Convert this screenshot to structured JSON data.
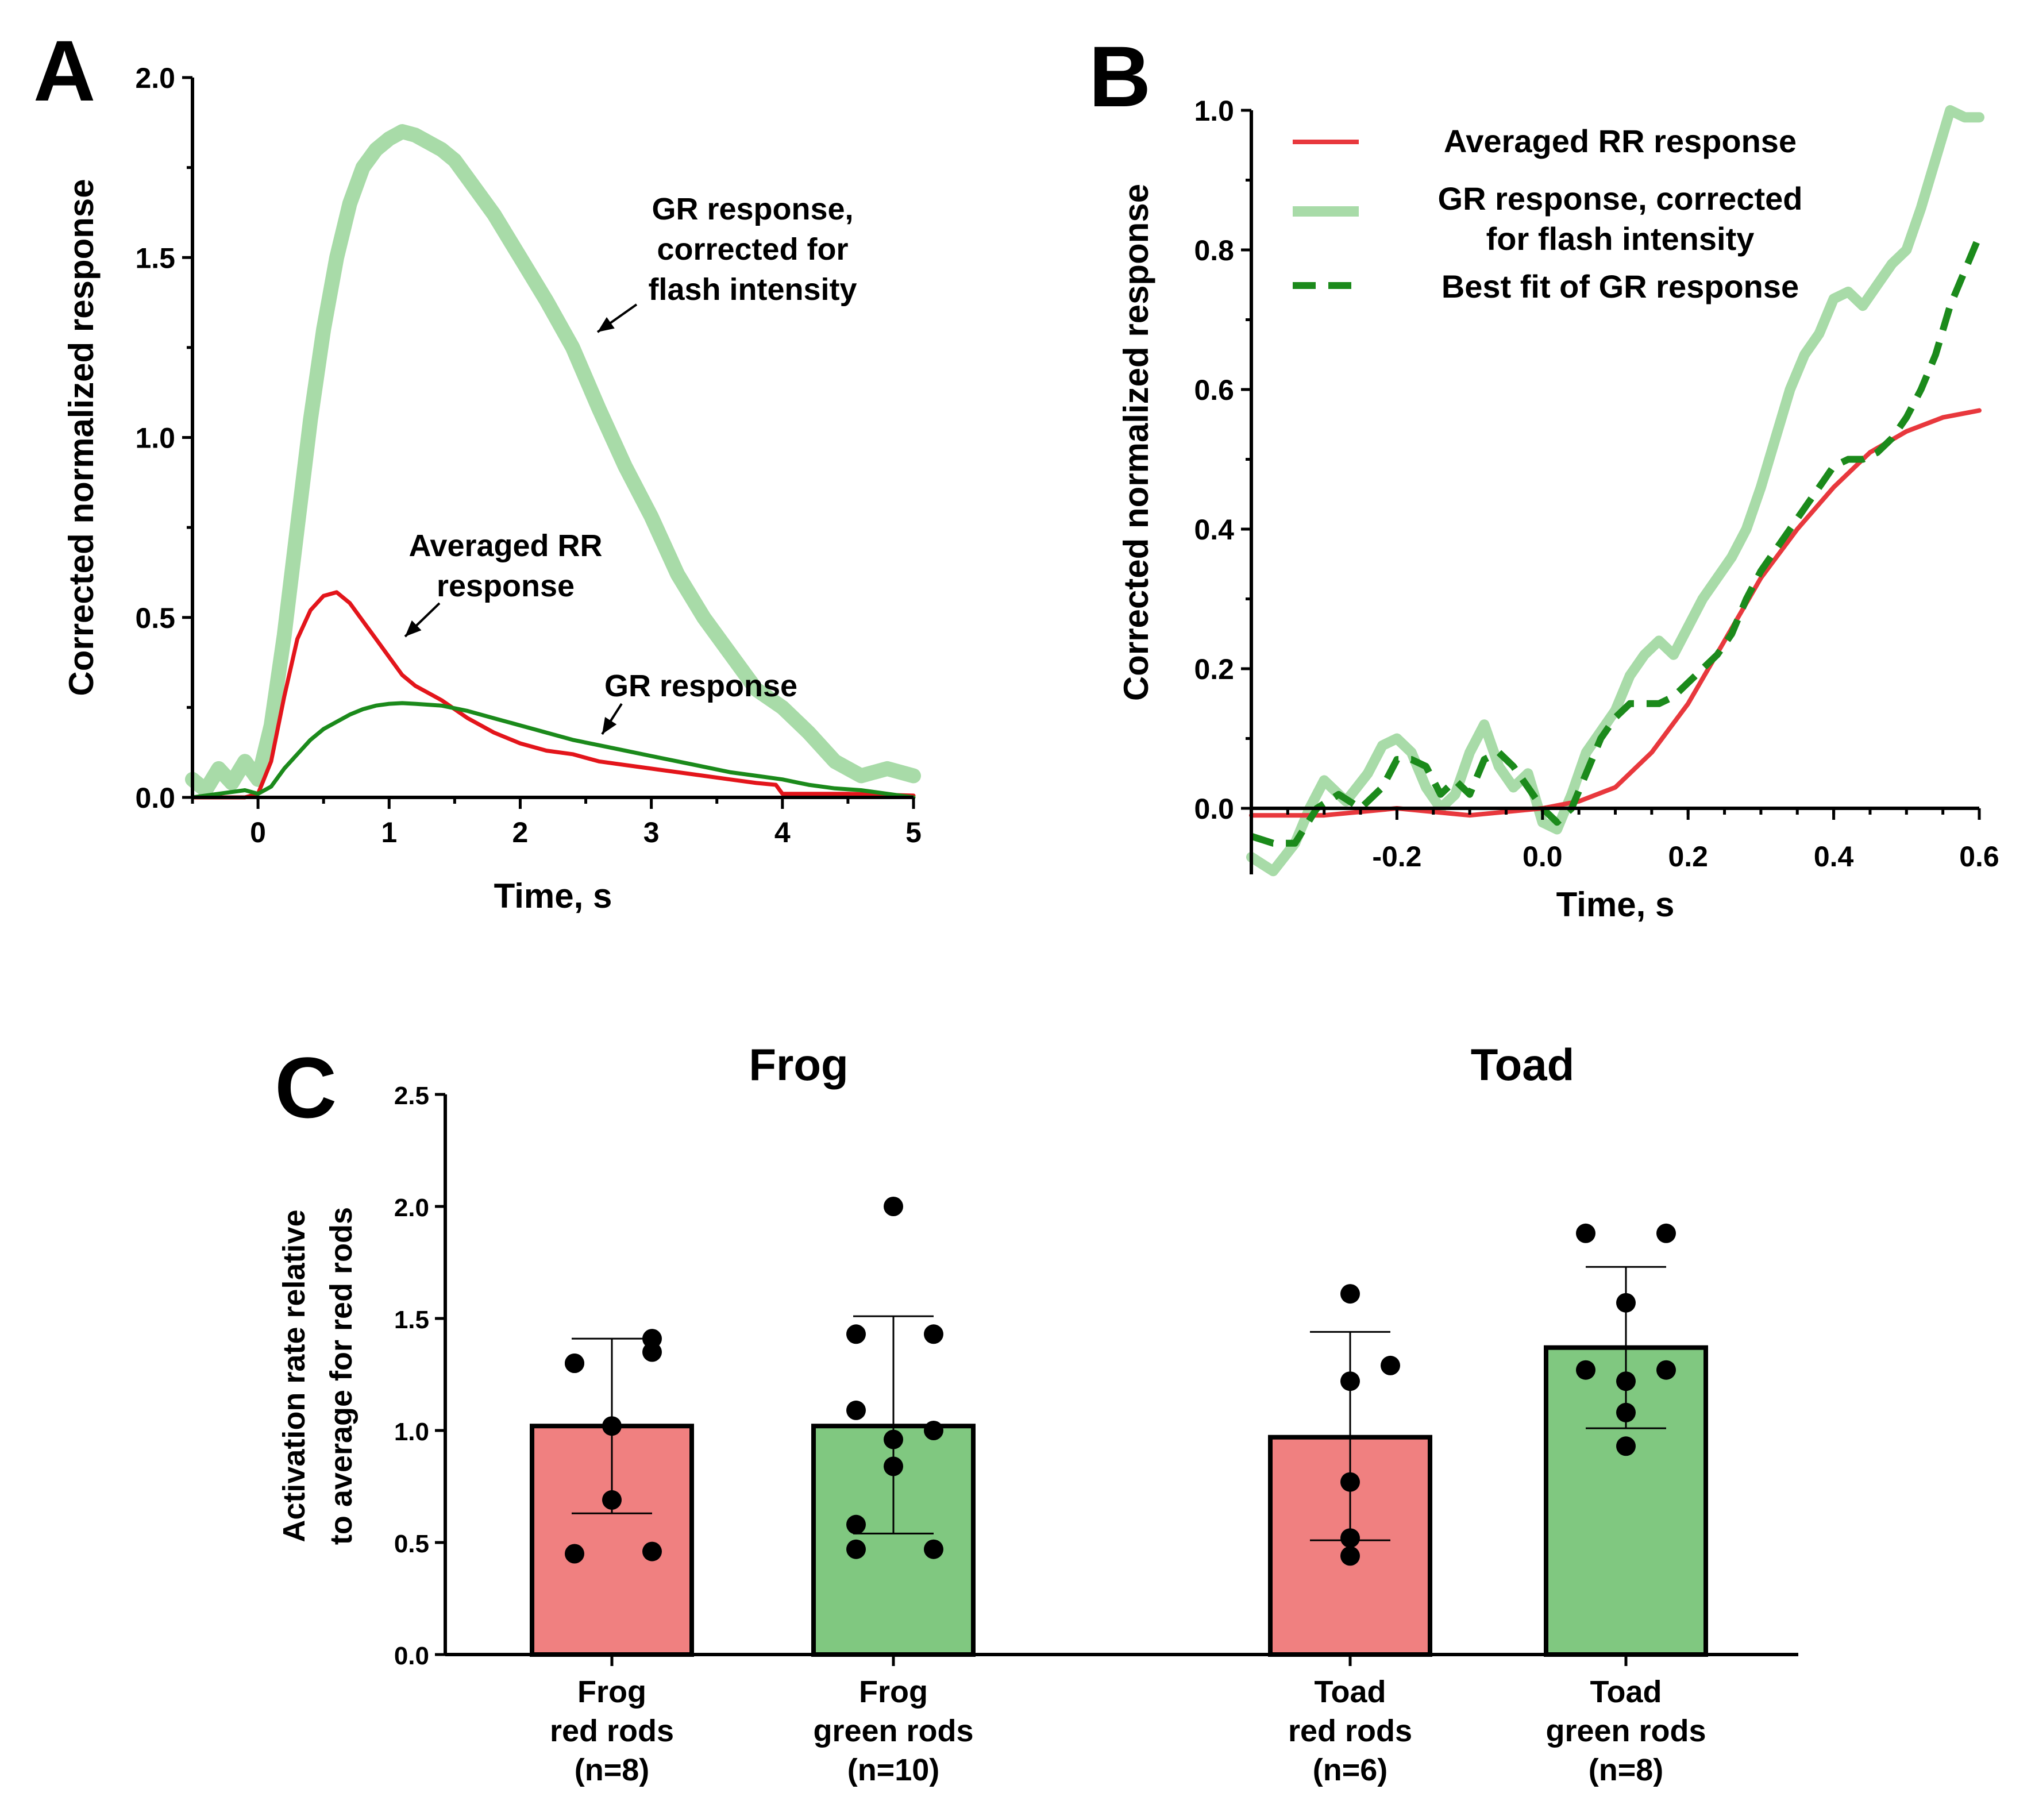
{
  "colors": {
    "rr_red": "#e3151b",
    "rr_red_light": "#e8383d",
    "gr_green_dark": "#1b8a1b",
    "gr_green_light": "#a8dba8",
    "bar_red": "#f08080",
    "bar_green": "#80c880",
    "dot": "#000000"
  },
  "chart_data": [
    {
      "panel": "A",
      "type": "line",
      "xlabel": "Time, s",
      "ylabel": "Corrected normalized response",
      "xlim": [
        -0.5,
        5
      ],
      "ylim": [
        0,
        2.0
      ],
      "xticks": [
        "0",
        "1",
        "2",
        "3",
        "4",
        "5"
      ],
      "yticks": [
        "0.0",
        "0.5",
        "1.0",
        "1.5",
        "2.0"
      ],
      "annotations": [
        {
          "lines": [
            "GR response,",
            "corrected for",
            "flash intensity"
          ]
        },
        {
          "lines": [
            "Averaged RR",
            "response"
          ]
        },
        {
          "lines": [
            "GR response"
          ]
        }
      ],
      "series": [
        {
          "name": "GR response, corrected for flash intensity",
          "color": "#a8dba8",
          "x": [
            -0.5,
            -0.4,
            -0.3,
            -0.2,
            -0.1,
            0,
            0.1,
            0.2,
            0.3,
            0.4,
            0.5,
            0.6,
            0.7,
            0.8,
            0.9,
            1.0,
            1.1,
            1.2,
            1.3,
            1.4,
            1.5,
            1.6,
            1.8,
            2.0,
            2.2,
            2.4,
            2.6,
            2.8,
            3.0,
            3.2,
            3.4,
            3.6,
            3.8,
            4.0,
            4.2,
            4.4,
            4.6,
            4.8,
            5.0
          ],
          "y": [
            0.05,
            0.02,
            0.08,
            0.04,
            0.1,
            0.05,
            0.2,
            0.45,
            0.75,
            1.05,
            1.3,
            1.5,
            1.65,
            1.75,
            1.8,
            1.83,
            1.85,
            1.84,
            1.82,
            1.8,
            1.77,
            1.72,
            1.62,
            1.5,
            1.38,
            1.25,
            1.08,
            0.92,
            0.78,
            0.62,
            0.5,
            0.4,
            0.3,
            0.25,
            0.18,
            0.1,
            0.06,
            0.08,
            0.06
          ]
        },
        {
          "name": "Averaged RR response",
          "color": "#e3151b",
          "x": [
            -0.5,
            -0.3,
            -0.1,
            0,
            0.1,
            0.2,
            0.3,
            0.4,
            0.5,
            0.6,
            0.7,
            0.8,
            0.9,
            1.0,
            1.1,
            1.2,
            1.4,
            1.6,
            1.8,
            2.0,
            2.2,
            2.4,
            2.6,
            2.8,
            3.0,
            3.2,
            3.4,
            3.6,
            3.8,
            3.95,
            4.0,
            4.2,
            4.5,
            5.0
          ],
          "y": [
            0.0,
            0.0,
            0.0,
            0.01,
            0.1,
            0.28,
            0.44,
            0.52,
            0.56,
            0.57,
            0.54,
            0.49,
            0.44,
            0.39,
            0.34,
            0.31,
            0.27,
            0.22,
            0.18,
            0.15,
            0.13,
            0.12,
            0.1,
            0.09,
            0.08,
            0.07,
            0.06,
            0.05,
            0.04,
            0.035,
            0.01,
            0.01,
            0.01,
            0.005
          ]
        },
        {
          "name": "GR response",
          "color": "#1b8a1b",
          "x": [
            -0.5,
            -0.3,
            -0.1,
            0,
            0.1,
            0.2,
            0.3,
            0.4,
            0.5,
            0.6,
            0.7,
            0.8,
            0.9,
            1.0,
            1.1,
            1.2,
            1.4,
            1.6,
            1.8,
            2.0,
            2.2,
            2.4,
            2.6,
            2.8,
            3.0,
            3.2,
            3.4,
            3.6,
            3.8,
            4.0,
            4.2,
            4.4,
            4.6,
            4.8,
            5.0
          ],
          "y": [
            0.0,
            0.01,
            0.02,
            0.01,
            0.03,
            0.08,
            0.12,
            0.16,
            0.19,
            0.21,
            0.23,
            0.245,
            0.255,
            0.26,
            0.262,
            0.26,
            0.255,
            0.24,
            0.22,
            0.2,
            0.18,
            0.16,
            0.145,
            0.13,
            0.115,
            0.1,
            0.085,
            0.07,
            0.06,
            0.05,
            0.035,
            0.025,
            0.02,
            0.01,
            0.0
          ]
        }
      ]
    },
    {
      "panel": "B",
      "type": "line",
      "xlabel": "Time, s",
      "ylabel": "Corrected normalized response",
      "xlim": [
        -0.4,
        0.6
      ],
      "ylim": [
        -0.1,
        1.0
      ],
      "xticks": [
        "-0.2",
        "0.0",
        "0.2",
        "0.4",
        "0.6"
      ],
      "yticks": [
        "0.0",
        "0.2",
        "0.4",
        "0.6",
        "0.8",
        "1.0"
      ],
      "legend": [
        "Averaged RR response",
        "GR response, corrected for flash intensity",
        "Best fit of GR response"
      ],
      "legend_lines": [
        [
          "Averaged RR response"
        ],
        [
          "GR response, corrected",
          "for flash intensity"
        ],
        [
          "Best fit of GR response"
        ]
      ],
      "series": [
        {
          "name": "GR response, corrected for flash intensity",
          "color": "#a8dba8",
          "x": [
            -0.4,
            -0.37,
            -0.34,
            -0.32,
            -0.3,
            -0.27,
            -0.24,
            -0.22,
            -0.2,
            -0.18,
            -0.16,
            -0.14,
            -0.12,
            -0.1,
            -0.08,
            -0.06,
            -0.04,
            -0.02,
            0.0,
            0.02,
            0.04,
            0.06,
            0.08,
            0.1,
            0.12,
            0.14,
            0.16,
            0.18,
            0.2,
            0.22,
            0.24,
            0.26,
            0.28,
            0.3,
            0.32,
            0.34,
            0.36,
            0.38,
            0.4,
            0.42,
            0.44,
            0.46,
            0.48,
            0.5,
            0.52,
            0.54,
            0.56,
            0.58,
            0.6
          ],
          "y": [
            -0.07,
            -0.09,
            -0.05,
            0.0,
            0.04,
            0.01,
            0.05,
            0.09,
            0.1,
            0.08,
            0.03,
            0.0,
            0.02,
            0.08,
            0.12,
            0.06,
            0.03,
            0.05,
            -0.02,
            -0.03,
            0.02,
            0.08,
            0.11,
            0.14,
            0.19,
            0.22,
            0.24,
            0.22,
            0.26,
            0.3,
            0.33,
            0.36,
            0.4,
            0.46,
            0.53,
            0.6,
            0.65,
            0.68,
            0.73,
            0.74,
            0.72,
            0.75,
            0.78,
            0.8,
            0.86,
            0.93,
            1.0,
            0.99,
            0.99
          ]
        },
        {
          "name": "Averaged RR response",
          "color": "#e8383d",
          "x": [
            -0.4,
            -0.3,
            -0.2,
            -0.1,
            0.0,
            0.05,
            0.1,
            0.15,
            0.2,
            0.25,
            0.3,
            0.35,
            0.4,
            0.45,
            0.5,
            0.55,
            0.6
          ],
          "y": [
            -0.01,
            -0.01,
            0.0,
            -0.01,
            0.0,
            0.01,
            0.03,
            0.08,
            0.15,
            0.24,
            0.33,
            0.4,
            0.46,
            0.51,
            0.54,
            0.56,
            0.57
          ]
        },
        {
          "name": "Best fit of GR response",
          "color": "#1b8a1b",
          "x": [
            -0.4,
            -0.37,
            -0.34,
            -0.31,
            -0.28,
            -0.25,
            -0.22,
            -0.2,
            -0.18,
            -0.16,
            -0.14,
            -0.12,
            -0.1,
            -0.08,
            -0.06,
            -0.04,
            -0.02,
            0.0,
            0.02,
            0.04,
            0.06,
            0.08,
            0.1,
            0.12,
            0.14,
            0.16,
            0.18,
            0.2,
            0.22,
            0.24,
            0.26,
            0.28,
            0.3,
            0.32,
            0.34,
            0.36,
            0.38,
            0.4,
            0.42,
            0.44,
            0.46,
            0.48,
            0.5,
            0.52,
            0.54,
            0.56,
            0.58,
            0.6
          ],
          "y": [
            -0.04,
            -0.05,
            -0.05,
            0.0,
            0.02,
            0.0,
            0.03,
            0.07,
            0.07,
            0.06,
            0.02,
            0.04,
            0.02,
            0.07,
            0.08,
            0.06,
            0.03,
            0.0,
            -0.02,
            0.0,
            0.05,
            0.1,
            0.13,
            0.15,
            0.15,
            0.15,
            0.16,
            0.18,
            0.2,
            0.22,
            0.25,
            0.3,
            0.34,
            0.37,
            0.4,
            0.43,
            0.46,
            0.49,
            0.5,
            0.5,
            0.51,
            0.53,
            0.56,
            0.6,
            0.65,
            0.72,
            0.77,
            0.82
          ]
        }
      ]
    },
    {
      "panel": "C",
      "type": "bar",
      "ylabel_lines": [
        "Activation rate relative",
        "to average for red rods"
      ],
      "ylim": [
        0,
        2.5
      ],
      "yticks": [
        "0.0",
        "0.5",
        "1.0",
        "1.5",
        "2.0",
        "2.5"
      ],
      "group_titles": [
        "Frog",
        "Toad"
      ],
      "categories": [
        {
          "lines": [
            "Frog",
            "red rods",
            "(n=8)"
          ],
          "value": 1.02,
          "sd_low": 0.63,
          "sd_high": 1.41,
          "color": "#f08080",
          "points": [
            0.45,
            0.46,
            0.69,
            1.02,
            1.3,
            1.3,
            1.35,
            1.41
          ]
        },
        {
          "lines": [
            "Frog",
            "green rods",
            "(n=10)"
          ],
          "value": 1.02,
          "sd_low": 0.54,
          "sd_high": 1.51,
          "color": "#80c880",
          "points": [
            0.47,
            0.47,
            0.58,
            0.84,
            0.96,
            1.0,
            1.09,
            1.43,
            1.43,
            2.0
          ]
        },
        {
          "lines": [
            "Toad",
            "red rods",
            "(n=6)"
          ],
          "value": 0.97,
          "sd_low": 0.51,
          "sd_high": 1.44,
          "color": "#f08080",
          "points": [
            0.44,
            0.52,
            0.77,
            1.22,
            1.29,
            1.61
          ]
        },
        {
          "lines": [
            "Toad",
            "green rods",
            "(n=8)"
          ],
          "value": 1.37,
          "sd_low": 1.01,
          "sd_high": 1.73,
          "color": "#80c880",
          "points": [
            0.93,
            1.08,
            1.22,
            1.27,
            1.27,
            1.57,
            1.88,
            1.88
          ]
        }
      ]
    }
  ],
  "panel_letters": [
    "A",
    "B",
    "C"
  ]
}
